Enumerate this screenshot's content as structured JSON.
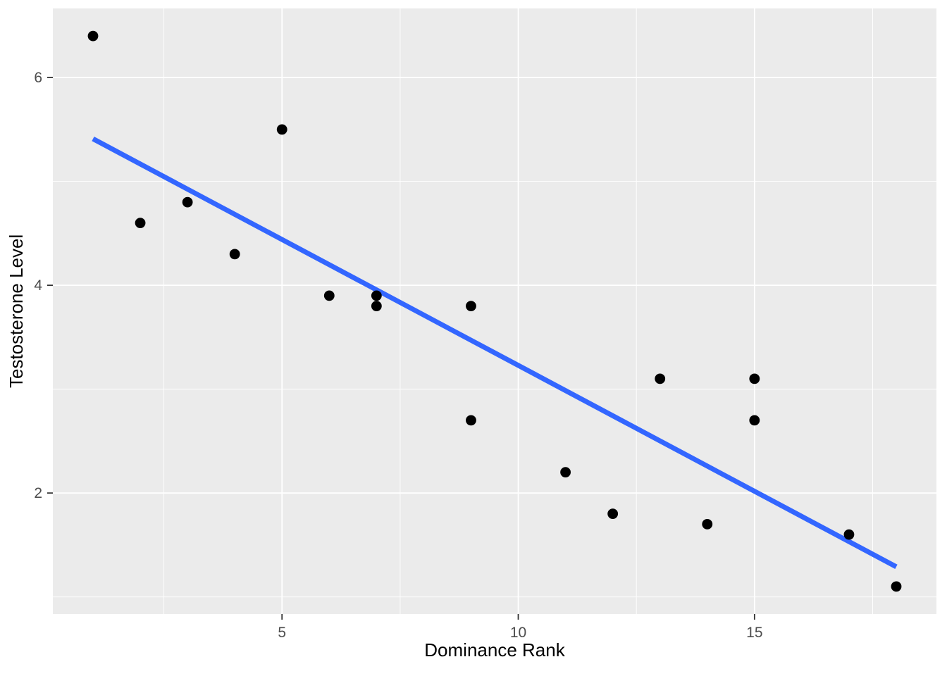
{
  "chart_data": {
    "type": "scatter",
    "title": "",
    "xlabel": "Dominance Rank",
    "ylabel": "Testosterone Level",
    "x": [
      1,
      2,
      3,
      4,
      5,
      6,
      7,
      7,
      9,
      9,
      11,
      12,
      13,
      14,
      15,
      15,
      17,
      18
    ],
    "y": [
      6.4,
      4.6,
      4.8,
      4.3,
      5.5,
      3.9,
      3.9,
      3.8,
      3.8,
      2.7,
      2.2,
      1.8,
      3.1,
      1.7,
      3.1,
      2.7,
      1.6,
      1.1
    ],
    "xlim": [
      0.15,
      18.85
    ],
    "ylim": [
      0.835,
      6.665
    ],
    "x_major_ticks": [
      5,
      10,
      15
    ],
    "x_tick_labels": [
      "5",
      "10",
      "15"
    ],
    "x_minor_ticks": [
      2.5,
      7.5,
      12.5,
      17.5
    ],
    "y_major_ticks": [
      2,
      4,
      6
    ],
    "y_tick_labels": [
      "2",
      "4",
      "6"
    ],
    "y_minor_ticks": [
      1,
      3,
      5
    ],
    "smooth_line": {
      "x1": 1,
      "y1": 5.41,
      "x2": 18,
      "y2": 1.29
    },
    "grid": "on",
    "legend": "none"
  },
  "style": {
    "background": "#FFFFFF",
    "panel_background": "#EBEBEB",
    "grid_color": "#FFFFFF",
    "point_color": "#000000",
    "smooth_line_color": "#3366FF",
    "tick_mark_color": "#333333",
    "tick_label_color": "#4D4D4D",
    "axis_title_color": "#000000"
  }
}
